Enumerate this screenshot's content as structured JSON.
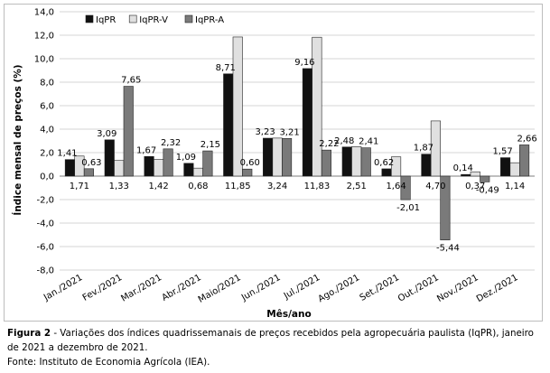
{
  "chart_data": {
    "type": "bar",
    "title": "",
    "xlabel": "Mês/ano",
    "ylabel": "Índice mensal de preços (%)",
    "ylim": [
      -8,
      14
    ],
    "yticks": [
      "14,0",
      "12,0",
      "10,0",
      "8,0",
      "6,0",
      "4,0",
      "2,0",
      "0,0",
      "-2,0",
      "-4,0",
      "-6,0",
      "-8,0"
    ],
    "grid": true,
    "legend_position": "top-left",
    "categories": [
      "Jan./2021",
      "Fev./2021",
      "Mar./2021",
      "Abr./2021",
      "Maio/2021",
      "Jun./2021",
      "Jul./2021",
      "Ago./2021",
      "Set./2021",
      "Out./2021",
      "Nov./2021",
      "Dez./2021"
    ],
    "series": [
      {
        "name": "IqPR",
        "color": "#111111",
        "values": [
          1.41,
          3.09,
          1.67,
          1.09,
          8.71,
          3.23,
          9.16,
          2.48,
          0.62,
          1.87,
          0.14,
          1.57
        ],
        "labels": [
          "1,41",
          "3,09",
          "1,67",
          "1,09",
          "8,71",
          "3,23",
          "9,16",
          "2,48",
          "0,62",
          "1,87",
          "0,14",
          "1,57"
        ]
      },
      {
        "name": "IqPR-V",
        "color": "#e0e0e0",
        "values": [
          1.71,
          1.33,
          1.42,
          0.68,
          11.85,
          3.24,
          11.83,
          2.51,
          1.64,
          4.7,
          0.37,
          1.14
        ],
        "labels": [
          "1,71",
          "1,33",
          "1,42",
          "0,68",
          "11,85",
          "3,24",
          "11,83",
          "2,51",
          "1,64",
          "4,70",
          "0,37",
          "1,14"
        ]
      },
      {
        "name": "IqPR-A",
        "color": "#7a7a7a",
        "values": [
          0.63,
          7.65,
          2.32,
          2.15,
          0.6,
          3.21,
          2.22,
          2.41,
          -2.01,
          -5.44,
          -0.49,
          2.66
        ],
        "labels": [
          "0,63",
          "7,65",
          "2,32",
          "2,15",
          "0,60",
          "3,21",
          "2,22",
          "2,41",
          "-2,01",
          "-5,44",
          "-0,49",
          "2,66"
        ]
      }
    ]
  },
  "caption": {
    "figure_label": "Figura 2",
    "figure_text": " - Variações dos índices quadrissemanais de preços recebidos pela agropecuária paulista (IqPR), janeiro de 2021 a dezembro de 2021.",
    "source": "Fonte: Instituto de Economia Agrícola (IEA)."
  }
}
